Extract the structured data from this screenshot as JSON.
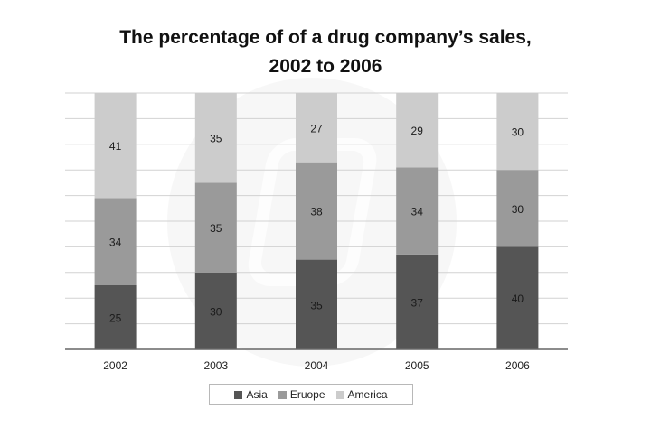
{
  "chart_data": {
    "type": "bar",
    "stacked": true,
    "title_lines": [
      "The percentage of of a drug company’s sales,",
      "2002 to 2006"
    ],
    "categories": [
      "2002",
      "2003",
      "2004",
      "2005",
      "2006"
    ],
    "series": [
      {
        "name": "Asia",
        "color": "#555555",
        "values": [
          25,
          30,
          35,
          37,
          40
        ]
      },
      {
        "name": "Eruope",
        "color": "#9a9a9a",
        "values": [
          34,
          35,
          38,
          34,
          30
        ]
      },
      {
        "name": "America",
        "color": "#cccccc",
        "values": [
          41,
          35,
          27,
          29,
          30
        ]
      }
    ],
    "ylim": [
      0,
      100
    ],
    "grid": true,
    "legend_position": "bottom"
  }
}
